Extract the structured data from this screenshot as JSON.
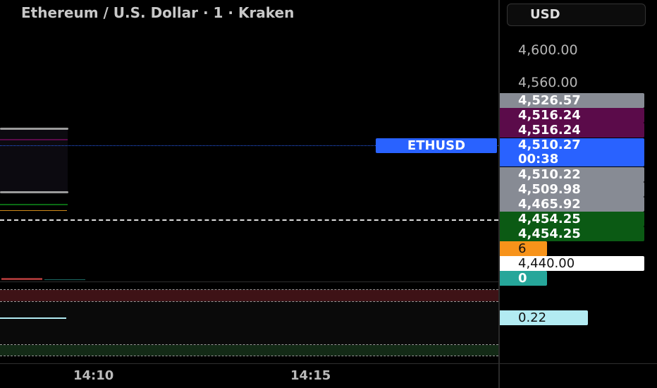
{
  "header": {
    "title": "Ethereum / U.S. Dollar · 1 · Kraken",
    "currency_button": "USD"
  },
  "price_axis": {
    "ticks": [
      "4,600.00",
      "4,560.00"
    ],
    "labels": [
      {
        "value": "4,526.57",
        "color": "#878b94"
      },
      {
        "value": "4,516.24",
        "color": "#5b0b4a"
      },
      {
        "value": "4,516.24",
        "color": "#5b0b4a"
      },
      {
        "value": "4,510.27",
        "countdown": "00:38",
        "color": "#2962ff"
      },
      {
        "value": "4,510.22",
        "color": "#878b94"
      },
      {
        "value": "4,509.98",
        "color": "#878b94"
      },
      {
        "value": "4,465.92",
        "color": "#878b94"
      },
      {
        "value": "4,454.25",
        "color": "#0b5a14"
      },
      {
        "value": "4,454.25",
        "color": "#0b5a14"
      },
      {
        "value": "6",
        "color": "#f7931a"
      },
      {
        "value": "4,440.00",
        "color": "#ffffff"
      },
      {
        "value": "0",
        "color": "#26a69a"
      }
    ],
    "symbol_label": "ETHUSD"
  },
  "indicator_axis": {
    "value": "0.22",
    "color": "#b2ebf2"
  },
  "time_axis": {
    "ticks": [
      "14:10",
      "14:15"
    ]
  }
}
